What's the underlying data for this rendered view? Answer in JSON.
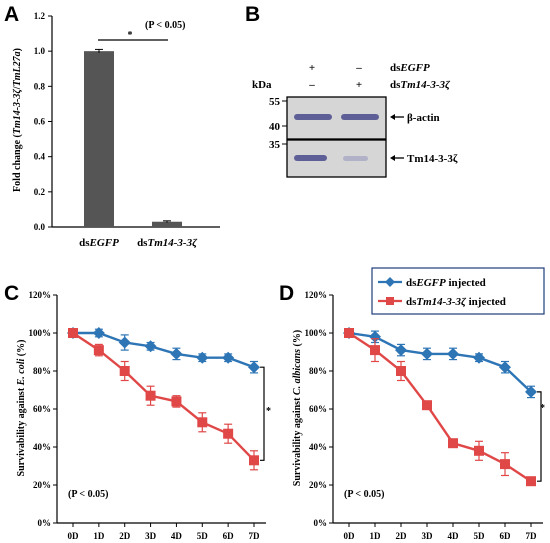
{
  "panels": {
    "a": {
      "letter": "A",
      "ylabel_parts": [
        "Fold change (",
        "Tm14-3-3ζ",
        "/",
        "TmL27a",
        ")"
      ],
      "categories": [
        {
          "prefix": "ds",
          "italic": "EGFP"
        },
        {
          "prefix": "ds",
          "italic": "Tm14-3-3ζ"
        }
      ],
      "yticks": [
        "0.0",
        "0.2",
        "0.4",
        "0.6",
        "0.8",
        "1.0",
        "1.2"
      ],
      "pvalue": "(P < 0.05)",
      "sig": "*"
    },
    "b": {
      "letter": "B",
      "row1": {
        "prefix": "ds",
        "italic": "EGFP",
        "signs": [
          "+",
          "–"
        ]
      },
      "row2": {
        "prefix": "ds",
        "italic": "Tm14-3-3ζ",
        "signs": [
          "–",
          "+"
        ]
      },
      "kda": "kDa",
      "markers": [
        "55",
        "40",
        "35"
      ],
      "bands": [
        "β-actin",
        "Tm14-3-3ζ"
      ]
    },
    "c": {
      "letter": "C",
      "ylabel_prefix": "Survivability against ",
      "ylabel_italic": "E. coli",
      "ylabel_suffix": " (%)",
      "pvalue": "(P < 0.05)",
      "sig": "*"
    },
    "d": {
      "letter": "D",
      "ylabel_prefix": "Survivability against ",
      "ylabel_italic": "C. albicans",
      "ylabel_suffix": " (%)",
      "pvalue": "(P < 0.05)",
      "sig": "*"
    },
    "legend": {
      "items": [
        {
          "prefix": "ds",
          "italic": "EGFP",
          "suffix": " injected"
        },
        {
          "prefix": "ds",
          "italic": "Tm14-3-3ζ",
          "suffix": " injected"
        }
      ]
    }
  },
  "colors": {
    "egfp": "#2E75B6",
    "tm": "#E04848",
    "bar": "#555555"
  },
  "chart_data": [
    {
      "type": "bar",
      "panel": "A",
      "categories": [
        "dsEGFP",
        "dsTm14-3-3ζ"
      ],
      "values": [
        1.0,
        0.03
      ],
      "errors": [
        0.01,
        0.005
      ],
      "ylabel": "Fold change (Tm14-3-3ζ/TmL27a)",
      "ylim": [
        0,
        1.2
      ],
      "annotation": "(P < 0.05)"
    },
    {
      "type": "line",
      "panel": "C",
      "x": [
        "0D",
        "1D",
        "2D",
        "3D",
        "4D",
        "5D",
        "6D",
        "7D"
      ],
      "ylabel": "Survivability against E. coli (%)",
      "ylim": [
        0,
        120
      ],
      "yticks": [
        "0%",
        "20%",
        "40%",
        "60%",
        "80%",
        "100%",
        "120%"
      ],
      "series": [
        {
          "name": "dsEGFP injected",
          "values": [
            100,
            100,
            95,
            93,
            89,
            87,
            87,
            82
          ],
          "errors": [
            0,
            2,
            4,
            2,
            3,
            2,
            2,
            3
          ]
        },
        {
          "name": "dsTm14-3-3ζ injected",
          "values": [
            100,
            91,
            80,
            67,
            64,
            53,
            47,
            33
          ],
          "errors": [
            0,
            3,
            5,
            5,
            3,
            5,
            5,
            5
          ]
        }
      ],
      "annotation": "(P < 0.05)"
    },
    {
      "type": "line",
      "panel": "D",
      "x": [
        "0D",
        "1D",
        "2D",
        "3D",
        "4D",
        "5D",
        "6D",
        "7D"
      ],
      "ylabel": "Survivability against C. albicans (%)",
      "ylim": [
        0,
        120
      ],
      "yticks": [
        "0%",
        "20%",
        "40%",
        "60%",
        "80%",
        "100%",
        "120%"
      ],
      "series": [
        {
          "name": "dsEGFP injected",
          "values": [
            100,
            98,
            91,
            89,
            89,
            87,
            82,
            69
          ],
          "errors": [
            0,
            3,
            3,
            3,
            3,
            2,
            3,
            3
          ]
        },
        {
          "name": "dsTm14-3-3ζ injected",
          "values": [
            100,
            91,
            80,
            62,
            42,
            38,
            31,
            22
          ],
          "errors": [
            0,
            6,
            5,
            2,
            2,
            5,
            6,
            2
          ]
        }
      ],
      "annotation": "(P < 0.05)"
    }
  ]
}
